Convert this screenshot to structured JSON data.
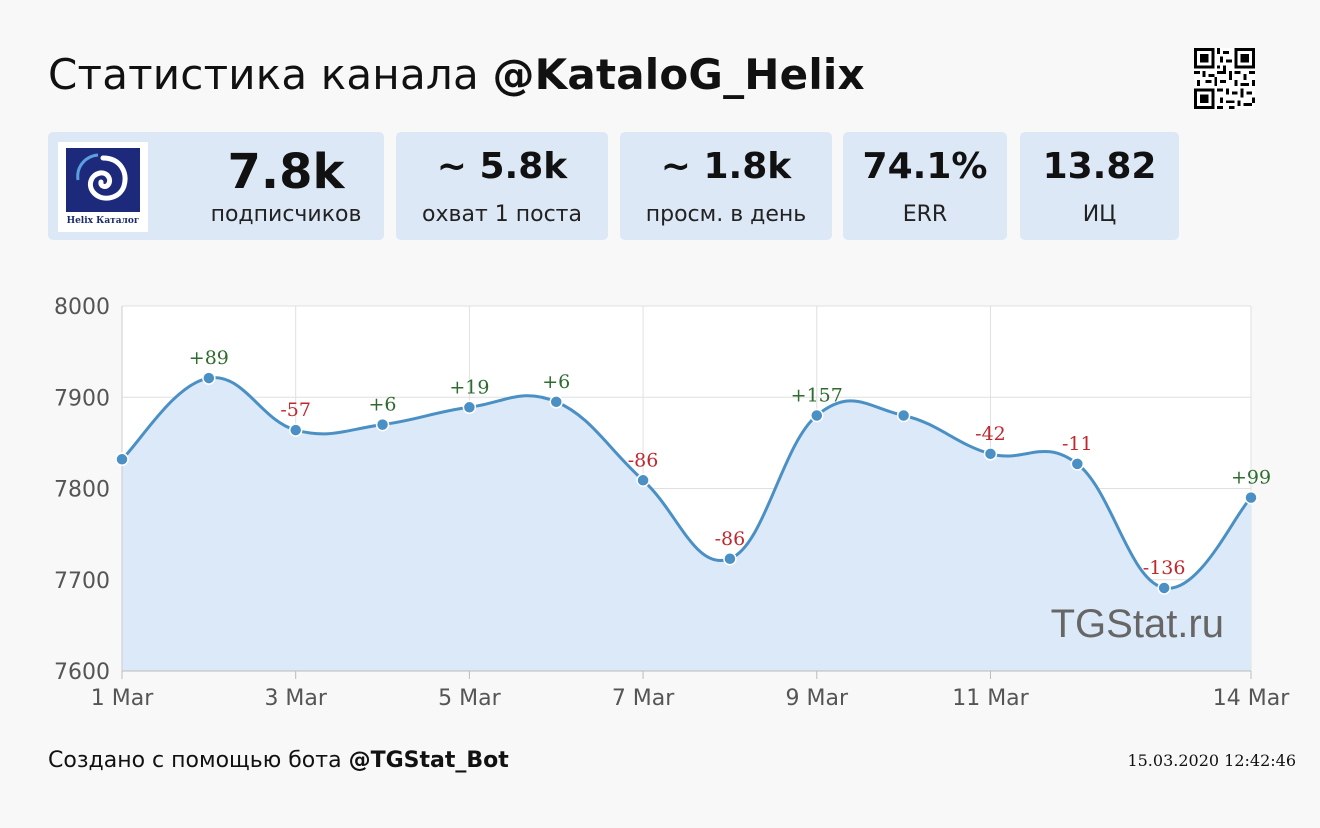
{
  "header": {
    "title_prefix": "Статистика канала",
    "channel": "@KataloG_Helix"
  },
  "stats": {
    "subscribers": {
      "value": "7.8k",
      "label": "подписчиков"
    },
    "reach": {
      "value": "~ 5.8k",
      "label": "охват 1 поста"
    },
    "daily_views": {
      "value": "~ 1.8k",
      "label": "просм. в день"
    },
    "err": {
      "value": "74.1%",
      "label": "ERR"
    },
    "ci": {
      "value": "13.82",
      "label": "ИЦ"
    }
  },
  "avatar": {
    "brand_text": "Helix Каталог"
  },
  "watermark": "TGStat.ru",
  "footer": {
    "prefix": "Создано с помощью бота",
    "bot": "@TGStat_Bot",
    "timestamp": "15.03.2020 12:42:46"
  },
  "colors": {
    "line": "#4a90c4",
    "fill": "#dce9f8",
    "positive": "#2e6b2e",
    "negative": "#c0282d",
    "card": "#dde8f6"
  },
  "chart_data": {
    "type": "area",
    "x": [
      "1 Mar",
      "2 Mar",
      "3 Mar",
      "4 Mar",
      "5 Mar",
      "6 Mar",
      "7 Mar",
      "8 Mar",
      "9 Mar",
      "10 Mar",
      "11 Mar",
      "12 Mar",
      "13 Mar",
      "14 Mar"
    ],
    "x_tick_labels": [
      "1 Mar",
      "3 Mar",
      "5 Mar",
      "7 Mar",
      "9 Mar",
      "11 Mar",
      "14 Mar"
    ],
    "y_ticks": [
      7600,
      7700,
      7800,
      7900,
      8000
    ],
    "ylim": [
      7600,
      8000
    ],
    "series": [
      {
        "values": [
          7832,
          7921,
          7864,
          7870,
          7889,
          7895,
          7809,
          7723,
          7880,
          7880,
          7838,
          7827,
          7691,
          7790
        ]
      }
    ],
    "annotations": [
      {
        "x": "1 Mar",
        "label": ""
      },
      {
        "x": "2 Mar",
        "label": "+89"
      },
      {
        "x": "3 Mar",
        "label": "-57"
      },
      {
        "x": "4 Mar",
        "label": "+6"
      },
      {
        "x": "5 Mar",
        "label": "+19"
      },
      {
        "x": "6 Mar",
        "label": "+6"
      },
      {
        "x": "7 Mar",
        "label": "-86"
      },
      {
        "x": "8 Mar",
        "label": "-86"
      },
      {
        "x": "9 Mar",
        "label": "+157"
      },
      {
        "x": "10 Mar",
        "label": ""
      },
      {
        "x": "11 Mar",
        "label": "-42"
      },
      {
        "x": "12 Mar",
        "label": "-11"
      },
      {
        "x": "13 Mar",
        "label": "-136"
      },
      {
        "x": "14 Mar",
        "label": "+99"
      }
    ],
    "grid": true,
    "legend": "none"
  }
}
